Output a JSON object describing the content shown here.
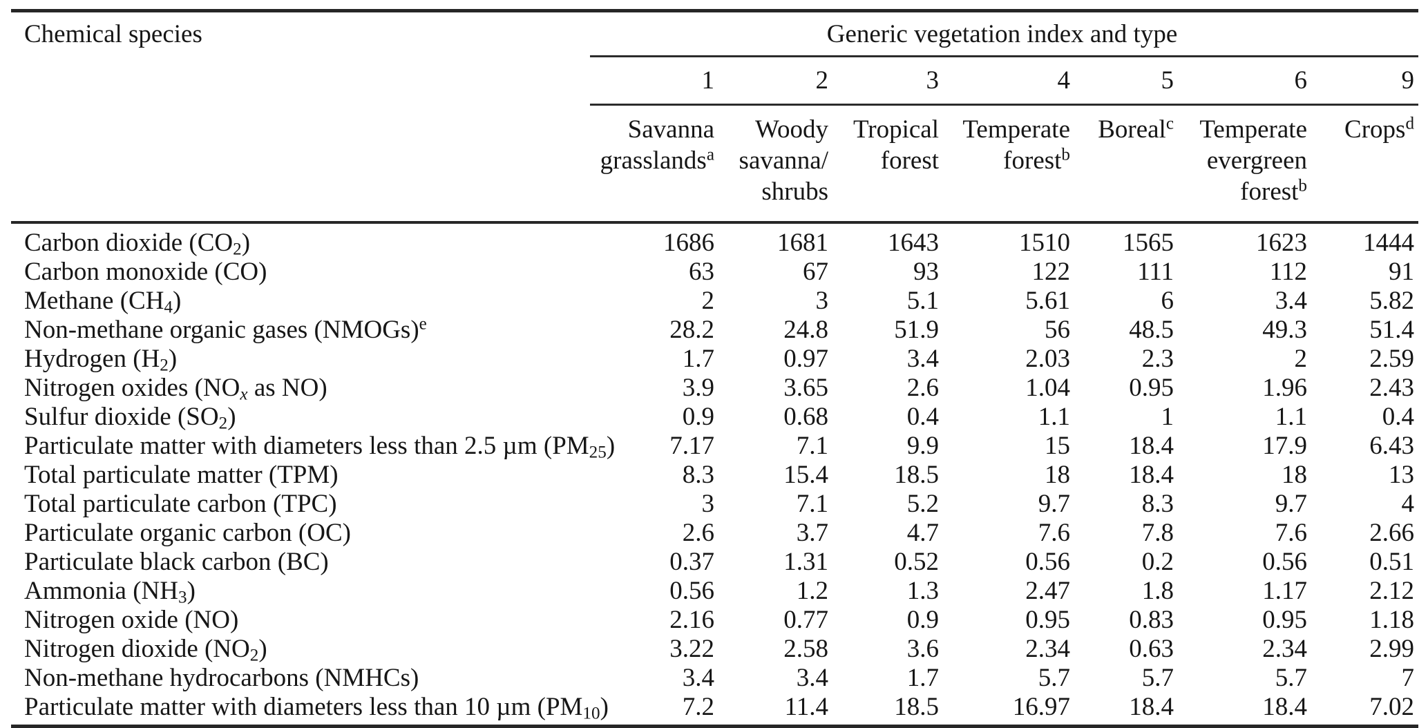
{
  "table": {
    "corner_header": "Chemical species",
    "group_header": "Generic vegetation index and type",
    "indices": [
      "1",
      "2",
      "3",
      "4",
      "5",
      "6",
      "9"
    ],
    "column_types": [
      {
        "name": "savanna-grasslands",
        "lines": [
          [
            {
              "t": "Savanna"
            }
          ],
          [
            {
              "t": "grasslands"
            },
            {
              "t": "a",
              "s": "sup"
            }
          ]
        ]
      },
      {
        "name": "woody-savanna-shrubs",
        "lines": [
          [
            {
              "t": "Woody"
            }
          ],
          [
            {
              "t": "savanna/"
            }
          ],
          [
            {
              "t": "shrubs"
            }
          ]
        ]
      },
      {
        "name": "tropical-forest",
        "lines": [
          [
            {
              "t": "Tropical"
            }
          ],
          [
            {
              "t": "forest"
            }
          ]
        ]
      },
      {
        "name": "temperate-forest",
        "lines": [
          [
            {
              "t": "Temperate"
            }
          ],
          [
            {
              "t": "forest"
            },
            {
              "t": "b",
              "s": "sup"
            }
          ]
        ]
      },
      {
        "name": "boreal",
        "lines": [
          [
            {
              "t": "Boreal"
            },
            {
              "t": "c",
              "s": "sup"
            }
          ]
        ]
      },
      {
        "name": "temperate-evergreen-forest",
        "lines": [
          [
            {
              "t": "Temperate"
            }
          ],
          [
            {
              "t": "evergreen"
            }
          ],
          [
            {
              "t": "forest"
            },
            {
              "t": "b",
              "s": "sup"
            }
          ]
        ]
      },
      {
        "name": "crops",
        "lines": [
          [
            {
              "t": "Crops"
            },
            {
              "t": "d",
              "s": "sup"
            }
          ]
        ]
      }
    ],
    "rows": [
      {
        "label": [
          {
            "t": "Carbon dioxide (CO"
          },
          {
            "t": "2",
            "s": "sub"
          },
          {
            "t": ")"
          }
        ],
        "values": [
          "1686",
          "1681",
          "1643",
          "1510",
          "1565",
          "1623",
          "1444"
        ]
      },
      {
        "label": [
          {
            "t": "Carbon monoxide (CO)"
          }
        ],
        "values": [
          "63",
          "67",
          "93",
          "122",
          "111",
          "112",
          "91"
        ]
      },
      {
        "label": [
          {
            "t": "Methane (CH"
          },
          {
            "t": "4",
            "s": "sub"
          },
          {
            "t": ")"
          }
        ],
        "values": [
          "2",
          "3",
          "5.1",
          "5.61",
          "6",
          "3.4",
          "5.82"
        ]
      },
      {
        "label": [
          {
            "t": "Non-methane organic gases (NMOGs)"
          },
          {
            "t": "e",
            "s": "sup"
          }
        ],
        "values": [
          "28.2",
          "24.8",
          "51.9",
          "56",
          "48.5",
          "49.3",
          "51.4"
        ]
      },
      {
        "label": [
          {
            "t": "Hydrogen (H"
          },
          {
            "t": "2",
            "s": "sub"
          },
          {
            "t": ")"
          }
        ],
        "values": [
          "1.7",
          "0.97",
          "3.4",
          "2.03",
          "2.3",
          "2",
          "2.59"
        ]
      },
      {
        "label": [
          {
            "t": "Nitrogen oxides (NO"
          },
          {
            "t": "x",
            "s": "sub",
            "i": true
          },
          {
            "t": " as NO)"
          }
        ],
        "values": [
          "3.9",
          "3.65",
          "2.6",
          "1.04",
          "0.95",
          "1.96",
          "2.43"
        ]
      },
      {
        "label": [
          {
            "t": "Sulfur dioxide (SO"
          },
          {
            "t": "2",
            "s": "sub"
          },
          {
            "t": ")"
          }
        ],
        "values": [
          "0.9",
          "0.68",
          "0.4",
          "1.1",
          "1",
          "1.1",
          "0.4"
        ]
      },
      {
        "label": [
          {
            "t": "Particulate matter with diameters less than 2.5 µm (PM"
          },
          {
            "t": "25",
            "s": "sub"
          },
          {
            "t": ")"
          }
        ],
        "values": [
          "7.17",
          "7.1",
          "9.9",
          "15",
          "18.4",
          "17.9",
          "6.43"
        ]
      },
      {
        "label": [
          {
            "t": "Total particulate matter (TPM)"
          }
        ],
        "values": [
          "8.3",
          "15.4",
          "18.5",
          "18",
          "18.4",
          "18",
          "13"
        ]
      },
      {
        "label": [
          {
            "t": "Total particulate carbon (TPC)"
          }
        ],
        "values": [
          "3",
          "7.1",
          "5.2",
          "9.7",
          "8.3",
          "9.7",
          "4"
        ]
      },
      {
        "label": [
          {
            "t": "Particulate organic carbon (OC)"
          }
        ],
        "values": [
          "2.6",
          "3.7",
          "4.7",
          "7.6",
          "7.8",
          "7.6",
          "2.66"
        ]
      },
      {
        "label": [
          {
            "t": "Particulate black carbon (BC)"
          }
        ],
        "values": [
          "0.37",
          "1.31",
          "0.52",
          "0.56",
          "0.2",
          "0.56",
          "0.51"
        ]
      },
      {
        "label": [
          {
            "t": "Ammonia (NH"
          },
          {
            "t": "3",
            "s": "sub"
          },
          {
            "t": ")"
          }
        ],
        "values": [
          "0.56",
          "1.2",
          "1.3",
          "2.47",
          "1.8",
          "1.17",
          "2.12"
        ]
      },
      {
        "label": [
          {
            "t": "Nitrogen oxide (NO)"
          }
        ],
        "values": [
          "2.16",
          "0.77",
          "0.9",
          "0.95",
          "0.83",
          "0.95",
          "1.18"
        ]
      },
      {
        "label": [
          {
            "t": "Nitrogen dioxide (NO"
          },
          {
            "t": "2",
            "s": "sub"
          },
          {
            "t": ")"
          }
        ],
        "values": [
          "3.22",
          "2.58",
          "3.6",
          "2.34",
          "0.63",
          "2.34",
          "2.99"
        ]
      },
      {
        "label": [
          {
            "t": "Non-methane hydrocarbons (NMHCs)"
          }
        ],
        "values": [
          "3.4",
          "3.4",
          "1.7",
          "5.7",
          "5.7",
          "5.7",
          "7"
        ]
      },
      {
        "label": [
          {
            "t": "Particulate matter with diameters less than 10 µm (PM"
          },
          {
            "t": "10",
            "s": "sub"
          },
          {
            "t": ")"
          }
        ],
        "values": [
          "7.2",
          "11.4",
          "18.5",
          "16.97",
          "18.4",
          "18.4",
          "7.02"
        ]
      }
    ]
  }
}
